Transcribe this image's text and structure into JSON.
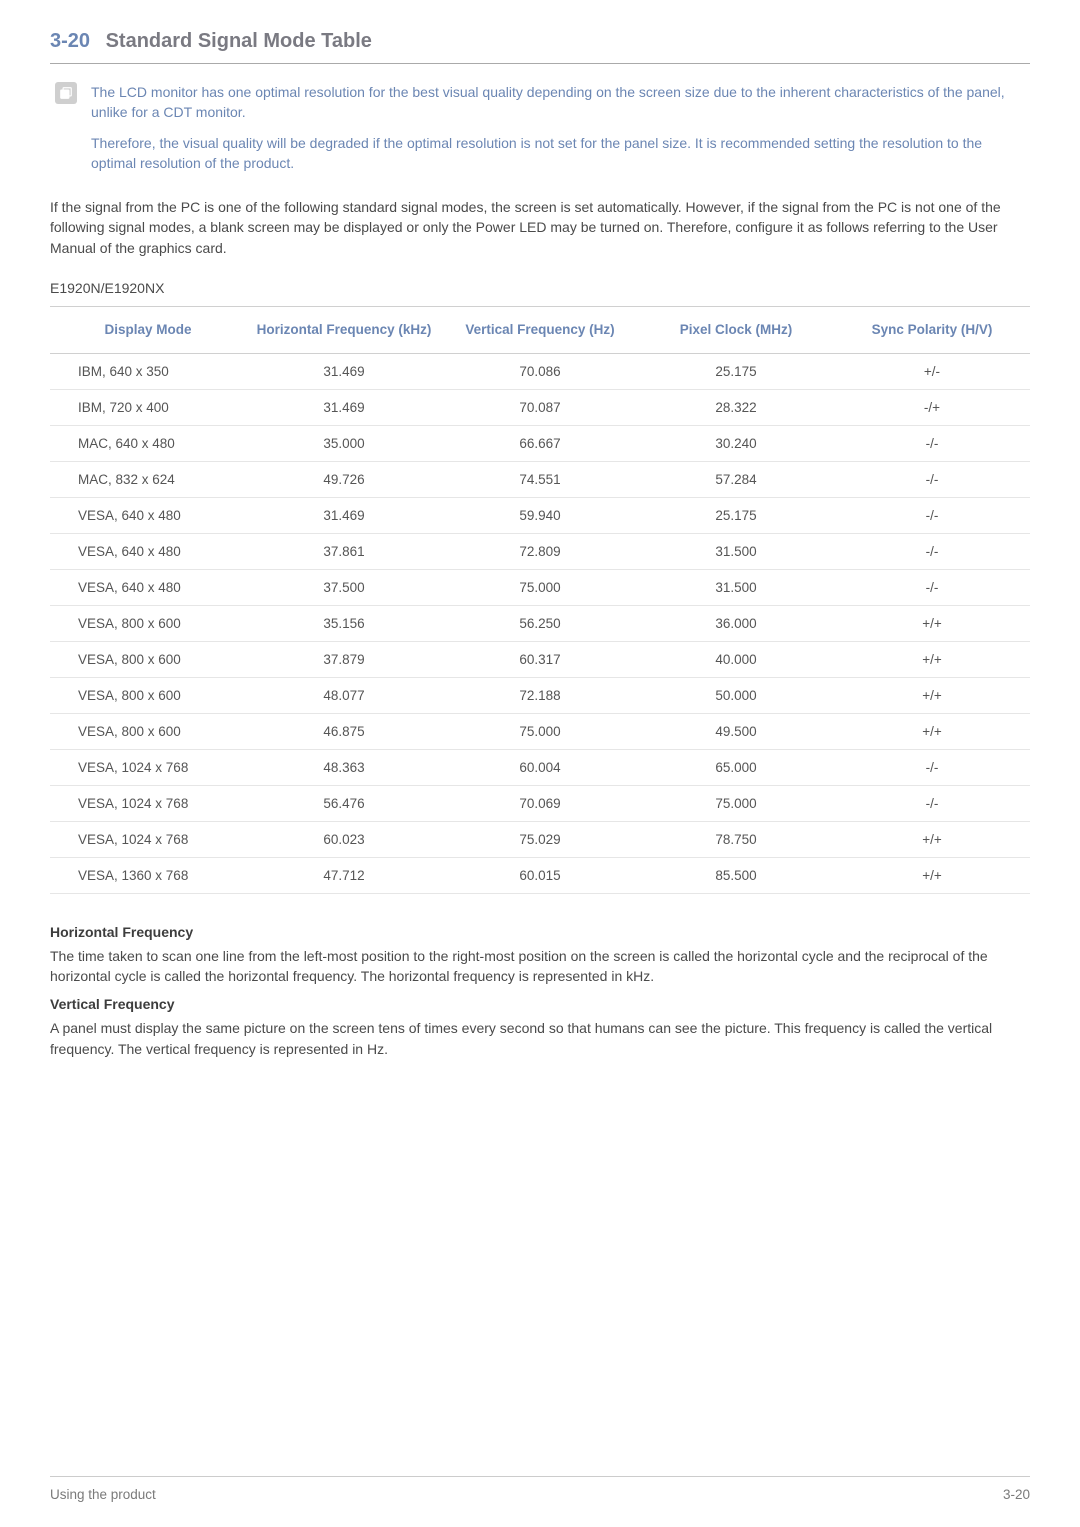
{
  "heading": {
    "number": "3-20",
    "title": "Standard Signal Mode Table"
  },
  "note": {
    "p1": "The LCD monitor has one optimal resolution for the best visual quality depending on the screen size due to the inherent characteristics of the panel, unlike for a CDT monitor.",
    "p2": "Therefore, the visual quality will be degraded if the optimal resolution is not set for the panel size. It is recommended setting the resolution to the optimal resolution of the product."
  },
  "intro": "If the signal from the PC is one of the following standard signal modes, the screen is set automatically. However, if the signal from the PC is not one of the following signal modes, a blank screen may be displayed or only the Power LED may be turned on. Therefore, configure it as follows referring to the User Manual of the graphics card.",
  "model": "E1920N/E1920NX",
  "table": {
    "columns": [
      "Display Mode",
      "Horizontal Frequency (kHz)",
      "Vertical Frequency (Hz)",
      "Pixel Clock (MHz)",
      "Sync Polarity (H/V)"
    ],
    "rows": [
      [
        "IBM, 640 x 350",
        "31.469",
        "70.086",
        "25.175",
        "+/-"
      ],
      [
        "IBM, 720 x 400",
        "31.469",
        "70.087",
        "28.322",
        "-/+"
      ],
      [
        "MAC, 640 x 480",
        "35.000",
        "66.667",
        "30.240",
        "-/-"
      ],
      [
        "MAC, 832 x 624",
        "49.726",
        "74.551",
        "57.284",
        "-/-"
      ],
      [
        "VESA, 640 x 480",
        "31.469",
        "59.940",
        "25.175",
        "-/-"
      ],
      [
        "VESA, 640 x 480",
        "37.861",
        "72.809",
        "31.500",
        "-/-"
      ],
      [
        "VESA, 640 x 480",
        "37.500",
        "75.000",
        "31.500",
        "-/-"
      ],
      [
        "VESA, 800 x 600",
        "35.156",
        "56.250",
        "36.000",
        "+/+"
      ],
      [
        "VESA, 800 x 600",
        "37.879",
        "60.317",
        "40.000",
        "+/+"
      ],
      [
        "VESA, 800 x 600",
        "48.077",
        "72.188",
        "50.000",
        "+/+"
      ],
      [
        "VESA, 800 x 600",
        "46.875",
        "75.000",
        "49.500",
        "+/+"
      ],
      [
        "VESA, 1024 x 768",
        "48.363",
        "60.004",
        "65.000",
        "-/-"
      ],
      [
        "VESA, 1024 x 768",
        "56.476",
        "70.069",
        "75.000",
        "-/-"
      ],
      [
        "VESA, 1024 x 768",
        "60.023",
        "75.029",
        "78.750",
        "+/+"
      ],
      [
        "VESA, 1360 x 768",
        "47.712",
        "60.015",
        "85.500",
        "+/+"
      ]
    ]
  },
  "defs": {
    "hf_title": "Horizontal Frequency",
    "hf_body": "The time taken to scan one line from the left-most position to the right-most position on the screen is called the horizontal cycle and the reciprocal of the horizontal cycle is called the horizontal frequency. The horizontal frequency is represented in kHz.",
    "vf_title": "Vertical Frequency",
    "vf_body": "A panel must display the same picture on the screen tens of times every second so that humans can see the picture. This frequency is called the vertical frequency. The vertical frequency is represented in Hz."
  },
  "footer": {
    "left": "Using the product",
    "right": "3-20"
  },
  "colors": {
    "accent": "#6b86b3",
    "heading_text": "#7a7a82",
    "body_text": "#4a4a4a",
    "border": "#d0d0d0",
    "row_border": "#e6e6e6",
    "icon_bg": "#cfcfcf"
  }
}
